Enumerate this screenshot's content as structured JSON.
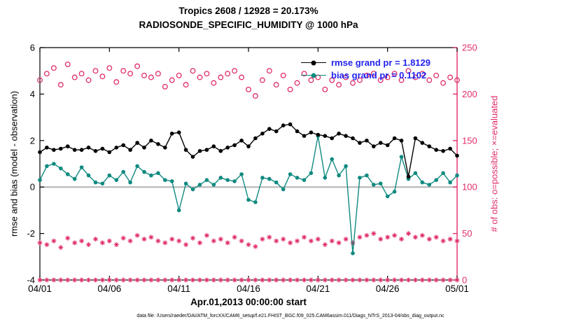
{
  "chart_data": {
    "type": "line",
    "title": "Tropics 2608 / 12928 = 20.173%",
    "subtitle": "RADIOSONDE_SPECIFIC_HUMIDITY @ 1000 hPa",
    "xlabel": "Apr.01,2013 00:00:00 start",
    "ylabel_left": "rmse and bias (model - observation)",
    "ylabel_right": "# of obs: o=possible; ×=evaluated",
    "x_tick_labels": [
      "04/01",
      "04/06",
      "04/11",
      "04/16",
      "04/21",
      "04/26",
      "05/01"
    ],
    "x_tick_days": [
      0,
      5,
      10,
      15,
      20,
      25,
      30
    ],
    "xlim_days": [
      0,
      30
    ],
    "x_step_days": 0.5,
    "ylim_left": [
      -4,
      6
    ],
    "yticks_left": [
      -4,
      -2,
      0,
      2,
      4,
      6
    ],
    "ylim_right": [
      0,
      250
    ],
    "yticks_right": [
      0,
      50,
      100,
      150,
      200,
      250
    ],
    "zero_reference_line_left": 0,
    "legend": {
      "rmse_label": "rmse grand pr = 1.8129",
      "bias_label": "bias grand pr = 0.1102"
    },
    "series": [
      {
        "name": "possible_obs",
        "axis": "right",
        "marker": "circle-open",
        "color_key": "obs",
        "line": false,
        "values": [
          215,
          222,
          228,
          210,
          232,
          218,
          222,
          215,
          225,
          219,
          228,
          213,
          225,
          222,
          230,
          220,
          218,
          222,
          208,
          215,
          220,
          210,
          225,
          218,
          222,
          212,
          218,
          222,
          225,
          218,
          205,
          198,
          215,
          225,
          210,
          220,
          205,
          212,
          222,
          215,
          218,
          205,
          215,
          210,
          218,
          212,
          215,
          220,
          222,
          215,
          218,
          222,
          215,
          225,
          218,
          222,
          215,
          220,
          212,
          218,
          215
        ]
      },
      {
        "name": "evaluated_obs",
        "axis": "right",
        "marker": "asterisk",
        "color_key": "obs",
        "line": false,
        "values": [
          40,
          38,
          42,
          35,
          45,
          40,
          42,
          38,
          44,
          40,
          42,
          38,
          45,
          42,
          48,
          44,
          46,
          42,
          40,
          44,
          42,
          38,
          45,
          40,
          48,
          42,
          44,
          40,
          46,
          42,
          38,
          36,
          44,
          46,
          42,
          44,
          40,
          42,
          46,
          42,
          44,
          38,
          42,
          40,
          44,
          40,
          46,
          48,
          50,
          44,
          46,
          48,
          44,
          50,
          46,
          48,
          44,
          46,
          42,
          44,
          42
        ]
      },
      {
        "name": "evaluated_zero_row",
        "axis": "right",
        "marker": "asterisk",
        "color_key": "obs",
        "line": false,
        "constant": 0
      },
      {
        "name": "bias",
        "axis": "left",
        "marker": "dot",
        "color_key": "bias",
        "line": true,
        "values": [
          0.3,
          0.9,
          1.0,
          0.8,
          0.55,
          0.35,
          0.85,
          0.5,
          0.2,
          0.15,
          0.5,
          0.3,
          0.65,
          0.2,
          0.9,
          0.65,
          0.5,
          0.6,
          0.3,
          0.25,
          -1.0,
          0.15,
          -0.1,
          0.1,
          0.3,
          0.1,
          0.4,
          0.3,
          0.25,
          0.55,
          -0.55,
          -0.65,
          0.4,
          0.35,
          0.2,
          -0.1,
          0.55,
          0.4,
          0.3,
          0.6,
          2.2,
          0.4,
          1.2,
          0.5,
          0.9,
          -2.85,
          0.4,
          0.5,
          0.1,
          0.15,
          -0.4,
          -0.2,
          1.3,
          0.35,
          0.6,
          0.2,
          0.1,
          0.3,
          0.6,
          0.2,
          0.5
        ]
      },
      {
        "name": "rmse",
        "axis": "left",
        "marker": "dot",
        "color_key": "rmse",
        "line": true,
        "values": [
          1.5,
          1.7,
          1.6,
          1.65,
          1.75,
          1.6,
          1.6,
          1.7,
          1.55,
          1.65,
          1.5,
          1.7,
          1.8,
          1.6,
          1.9,
          1.7,
          2.0,
          1.85,
          1.7,
          2.3,
          2.35,
          1.6,
          1.3,
          1.55,
          1.6,
          1.75,
          1.55,
          1.7,
          1.8,
          2.0,
          1.75,
          2.1,
          2.3,
          2.5,
          2.4,
          2.65,
          2.7,
          2.4,
          2.2,
          2.35,
          2.25,
          2.2,
          2.1,
          2.3,
          2.2,
          2.1,
          1.9,
          2.0,
          1.75,
          1.9,
          1.8,
          2.1,
          2.0,
          0.45,
          2.1,
          1.9,
          1.75,
          1.6,
          1.55,
          1.65,
          1.35
        ]
      }
    ]
  },
  "colors": {
    "rmse": "#000000",
    "bias": "#108a80",
    "obs": "#e02c6c",
    "legend_text": "#2222ee",
    "zero_line": "#b3b3b3",
    "axis": "#000000"
  },
  "footer": {
    "data_file": "data file: /Users/raeder/DAI/ATM_forcXX/CAM6_setup/f.e21.FHIST_BGC.f09_025.CAM6assim.011/Diags_NTrS_2013-04/obs_diag_output.nc"
  }
}
